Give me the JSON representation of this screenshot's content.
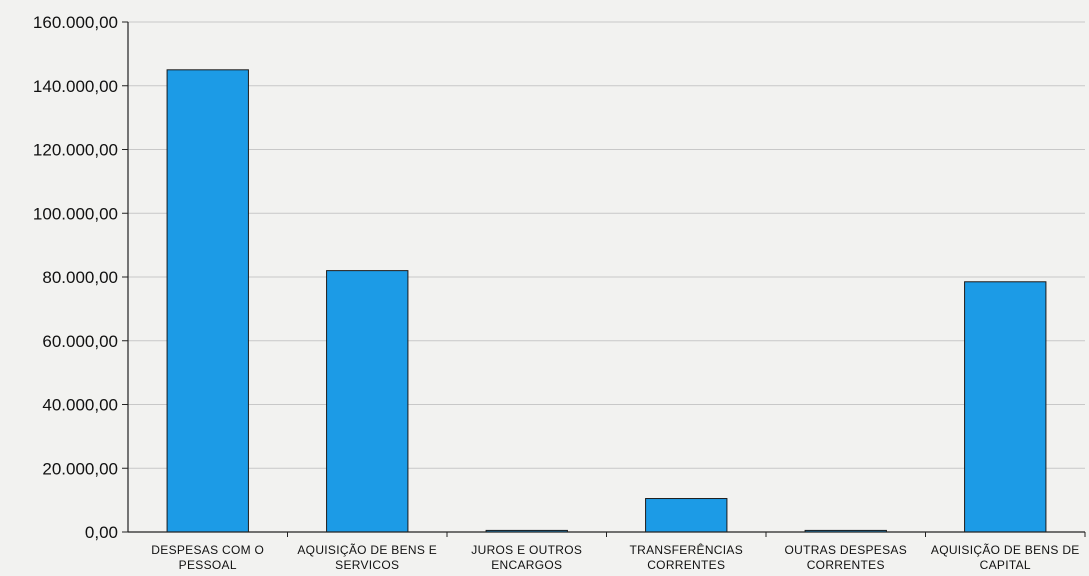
{
  "chart_data": {
    "type": "bar",
    "title": "",
    "xlabel": "",
    "ylabel": "",
    "ylim": [
      0,
      160000
    ],
    "y_tick_labels": [
      "0,00",
      "20.000,00",
      "40.000,00",
      "60.000,00",
      "80.000,00",
      "100.000,00",
      "120.000,00",
      "140.000,00",
      "160.000,00"
    ],
    "categories": [
      [
        "DESPESAS COM O",
        "PESSOAL"
      ],
      [
        "AQUISIÇÃO DE BENS E",
        "SERVICOS"
      ],
      [
        "JUROS E OUTROS",
        "ENCARGOS"
      ],
      [
        "TRANSFERÊNCIAS",
        "CORRENTES"
      ],
      [
        "OUTRAS DESPESAS",
        "CORRENTES"
      ],
      [
        "AQUISIÇÃO DE BENS DE",
        "CAPITAL"
      ]
    ],
    "values": [
      145000,
      82000,
      500,
      10500,
      500,
      78500
    ],
    "bar_color": "#1c9be6",
    "grid": true,
    "legend": "none"
  }
}
